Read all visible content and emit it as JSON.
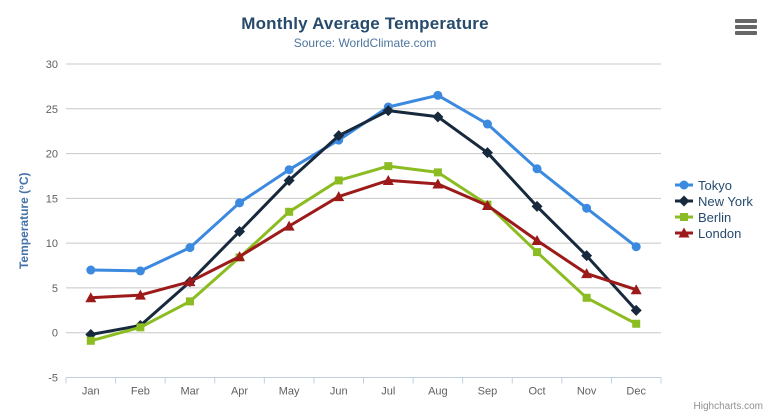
{
  "header": {
    "title": "Monthly Average Temperature",
    "subtitle": "Source: WorldClimate.com"
  },
  "credits_label": "Highcharts.com",
  "menu": {
    "icon": "hamburger-icon",
    "tooltip": "Chart context menu"
  },
  "chart_data": {
    "type": "line",
    "title": "Monthly Average Temperature",
    "subtitle": "Source: WorldClimate.com",
    "categories": [
      "Jan",
      "Feb",
      "Mar",
      "Apr",
      "May",
      "Jun",
      "Jul",
      "Aug",
      "Sep",
      "Oct",
      "Nov",
      "Dec"
    ],
    "xlabel": "",
    "ylabel": "Temperature (°C)",
    "ylim": [
      -5,
      30
    ],
    "ytick_step": 5,
    "yticks": [
      -5,
      0,
      5,
      10,
      15,
      20,
      25,
      30
    ],
    "grid": true,
    "legend_position": "right",
    "colors": {
      "grid_line": "#c8c8c8",
      "axis_line": "#c0d0e0",
      "tick_label": "#606060",
      "y_axis_title": "#4572a7",
      "title_text": "#274b6d",
      "subtitle_text": "#4d759e"
    },
    "series": [
      {
        "name": "Tokyo",
        "color": "#3c8ae0",
        "marker": "circle",
        "values": [
          7.0,
          6.9,
          9.5,
          14.5,
          18.2,
          21.5,
          25.2,
          26.5,
          23.3,
          18.3,
          13.9,
          9.6
        ]
      },
      {
        "name": "New York",
        "color": "#17293d",
        "marker": "diamond",
        "values": [
          -0.2,
          0.8,
          5.7,
          11.3,
          17.0,
          22.0,
          24.8,
          24.1,
          20.1,
          14.1,
          8.6,
          2.5
        ]
      },
      {
        "name": "Berlin",
        "color": "#8bbc21",
        "marker": "square",
        "values": [
          -0.9,
          0.6,
          3.5,
          8.4,
          13.5,
          17.0,
          18.6,
          17.9,
          14.3,
          9.0,
          3.9,
          1.0
        ]
      },
      {
        "name": "London",
        "color": "#9c1a1a",
        "marker": "triangle",
        "values": [
          3.9,
          4.2,
          5.7,
          8.5,
          11.9,
          15.2,
          17.0,
          16.6,
          14.2,
          10.3,
          6.6,
          4.8
        ]
      }
    ]
  }
}
